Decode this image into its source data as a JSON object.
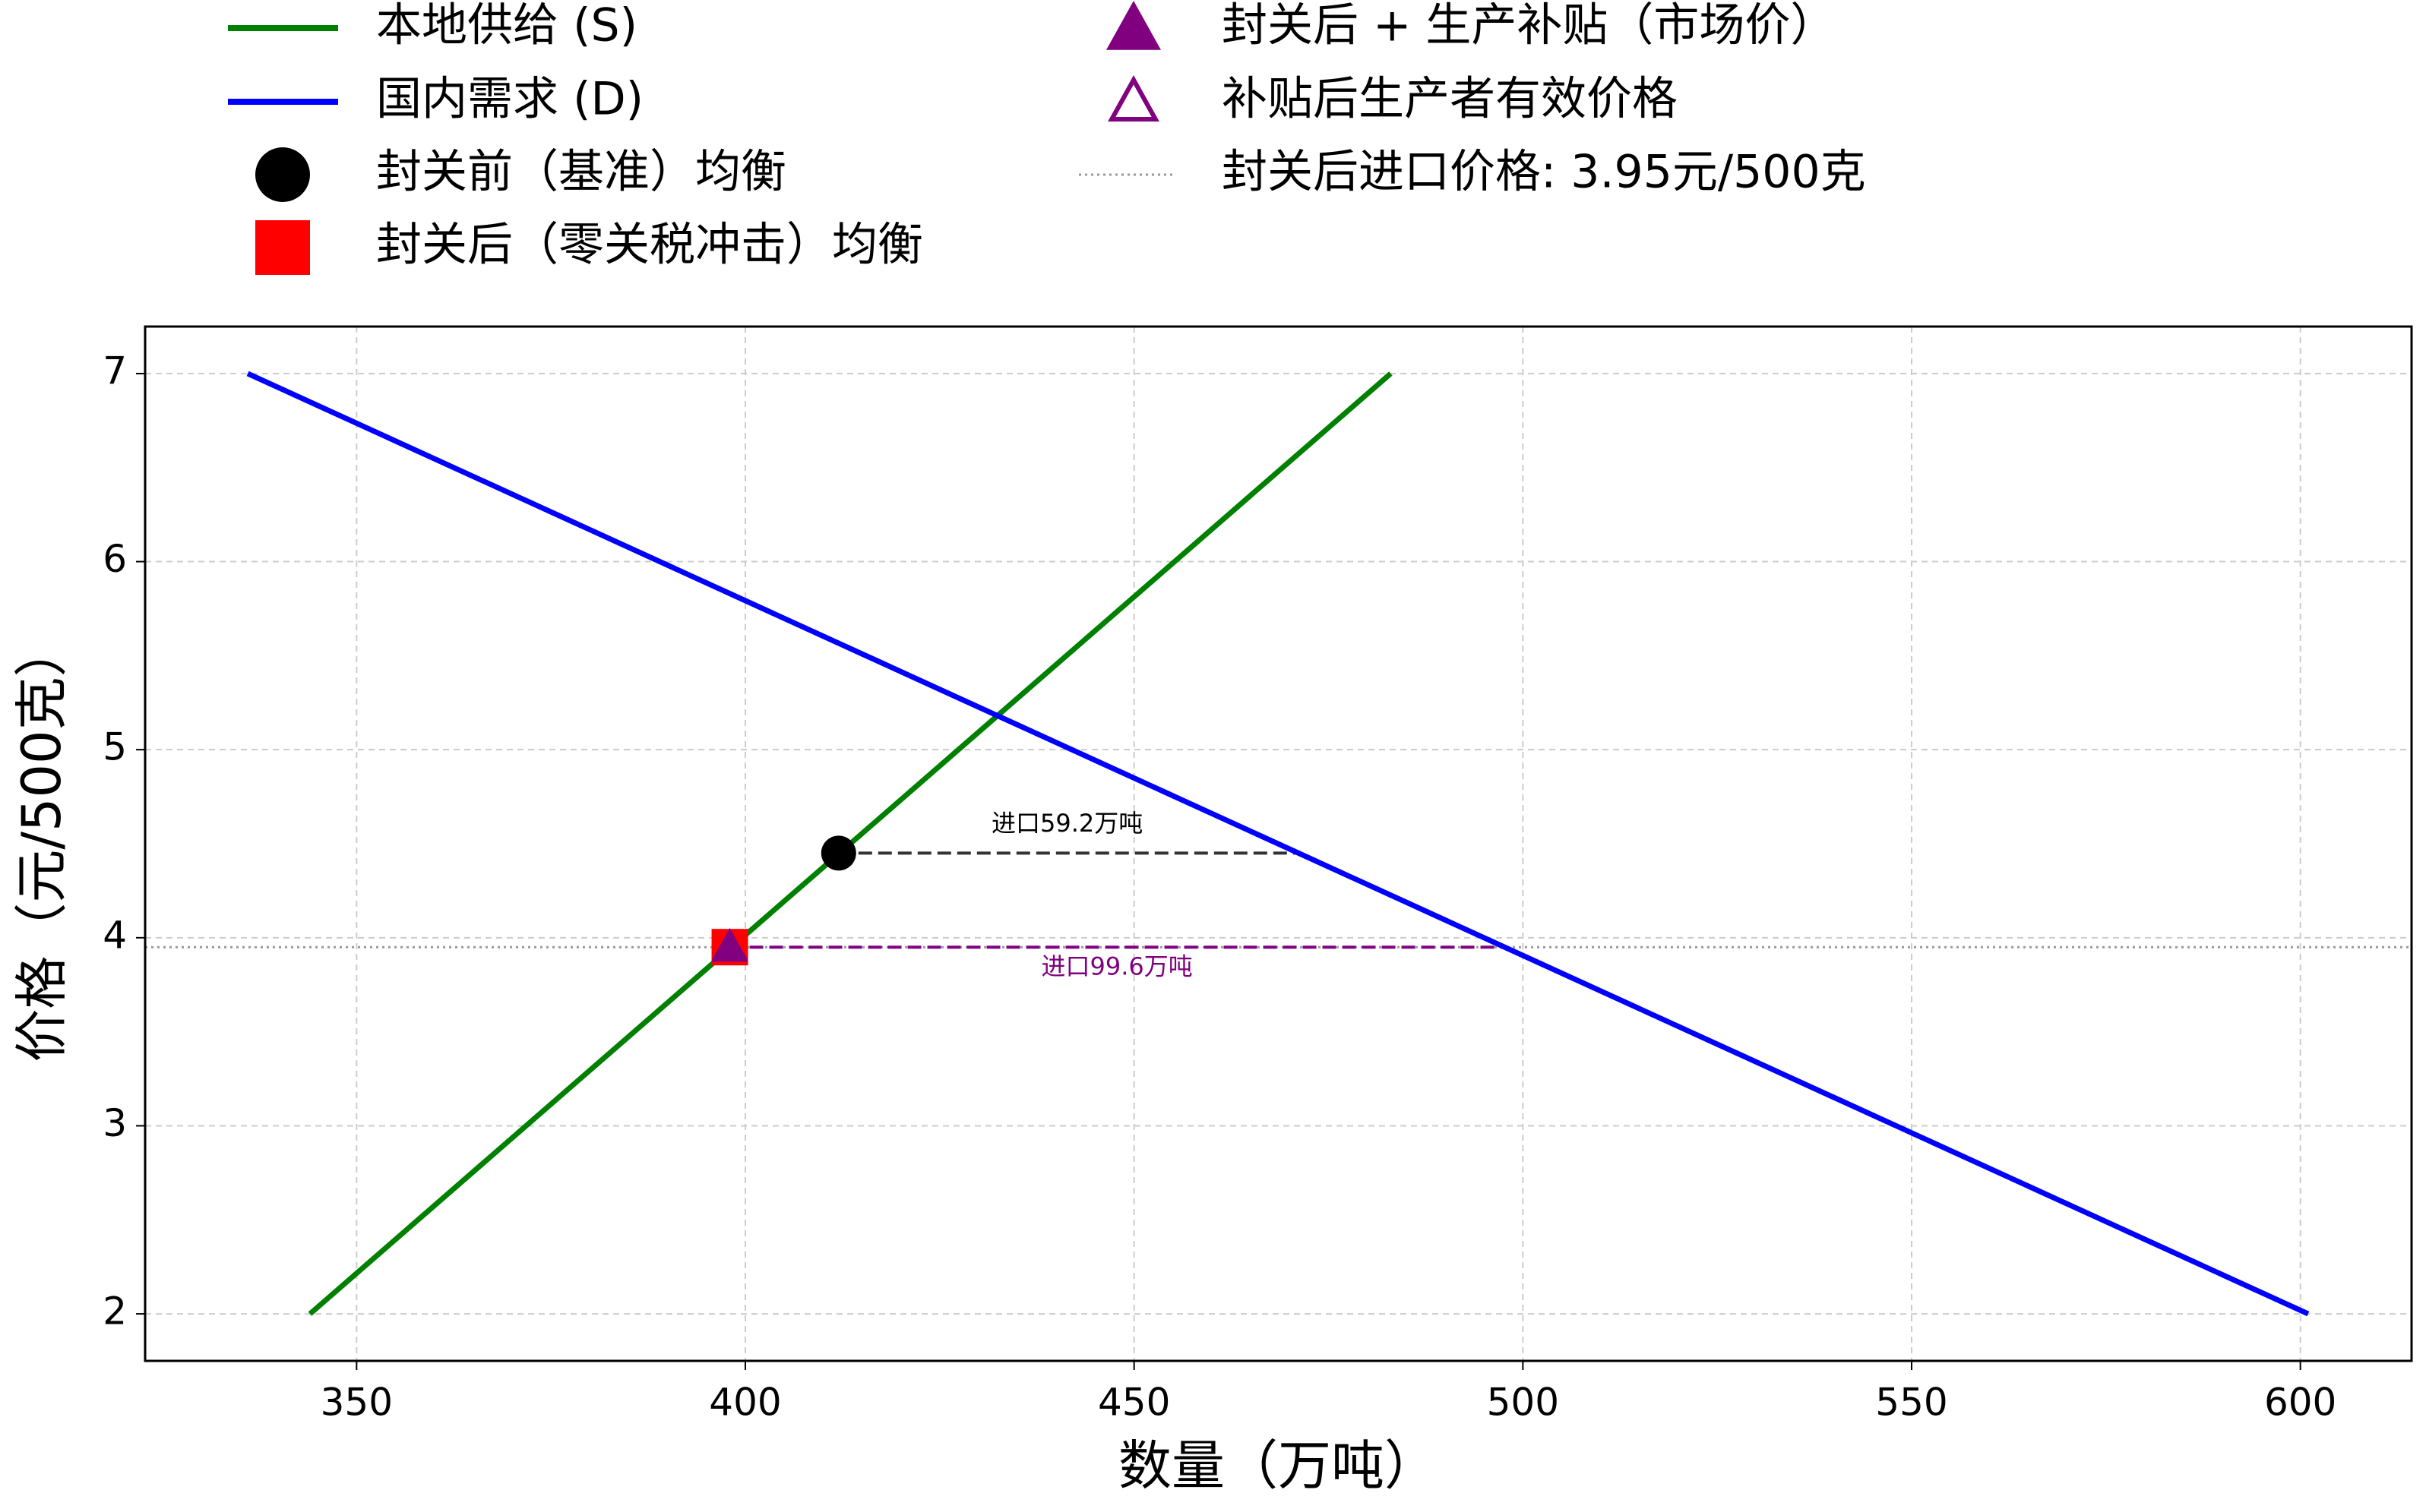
{
  "chart_data": {
    "type": "line",
    "xlabel": "数量（万吨）",
    "ylabel": "价格（元/500克）",
    "xlim": [
      322.8,
      614.3
    ],
    "ylim": [
      1.75,
      7.25
    ],
    "xticks": [
      350,
      400,
      450,
      500,
      550,
      600
    ],
    "yticks": [
      2,
      3,
      4,
      5,
      6,
      7
    ],
    "grid": true,
    "series": [
      {
        "name": "本地供给 (S)",
        "kind": "line",
        "color": "#008000",
        "x": [
          344,
          483
        ],
        "values": [
          2,
          7
        ]
      },
      {
        "name": "国内需求 (D)",
        "kind": "line",
        "color": "#0000ff",
        "x": [
          336,
          601
        ],
        "values": [
          7,
          2
        ]
      },
      {
        "name": "封关前（基准）均衡",
        "kind": "circle",
        "color": "#000000",
        "x": [
          412
        ],
        "values": [
          4.45
        ]
      },
      {
        "name": "封关后（零关税冲击）均衡",
        "kind": "square",
        "color": "#ff0000",
        "x": [
          398
        ],
        "values": [
          3.95
        ]
      },
      {
        "name": "封关后 + 生产补贴（市场价）",
        "kind": "triangle",
        "color": "#800080",
        "x": [
          398
        ],
        "values": [
          3.95
        ]
      },
      {
        "name": "补贴后生产者有效价格",
        "kind": "triangle-open",
        "color": "#800080",
        "x": [
          398
        ],
        "values": [
          3.95
        ]
      },
      {
        "name": "封关后进口价格: 3.95元/500克",
        "kind": "hline",
        "color": "#999999",
        "y": 3.95
      }
    ],
    "segments": [
      {
        "color": "#333333",
        "x": [
          412,
          471.2
        ],
        "values": [
          4.45,
          4.45
        ]
      },
      {
        "color": "#800080",
        "x": [
          398,
          497.6
        ],
        "values": [
          3.95,
          3.95
        ]
      }
    ],
    "annotations": [
      {
        "text": "进口59.2万吨",
        "color": "#000000",
        "x": 441.4,
        "y": 4.6
      },
      {
        "text": "进口99.6万吨",
        "color": "#800080",
        "x": 447.8,
        "y": 3.84
      }
    ]
  }
}
